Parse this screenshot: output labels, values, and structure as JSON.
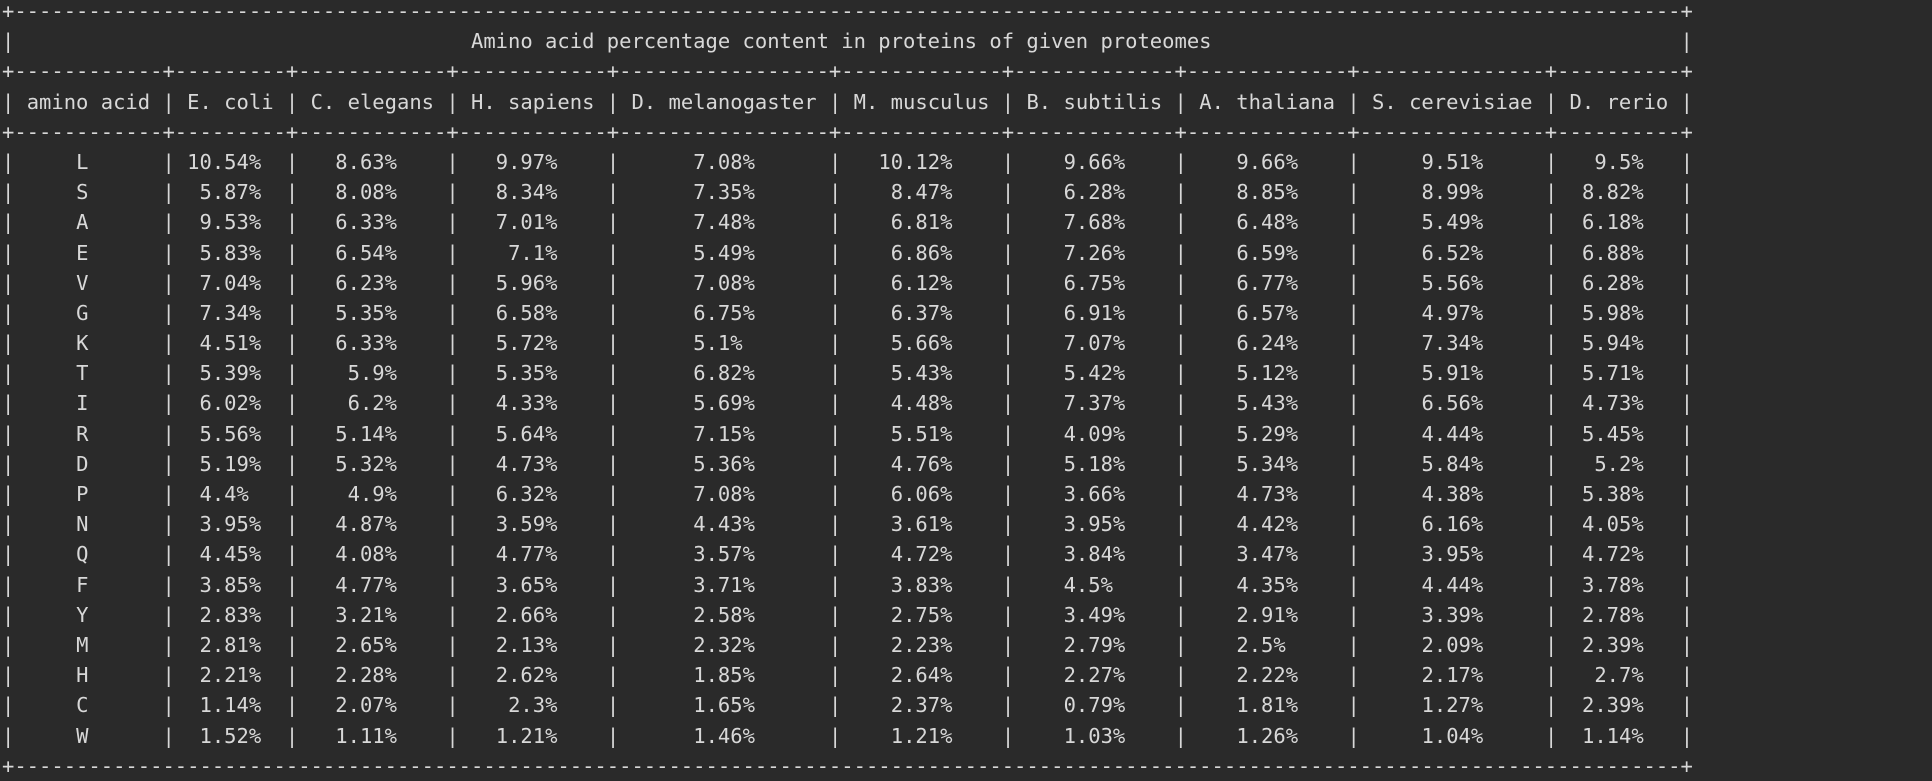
{
  "table": {
    "title": "Amino acid percentage content in proteins of given proteomes",
    "headers": [
      "amino acid",
      "E. coli",
      "C. elegans",
      "H. sapiens",
      "D. melanogaster",
      "M. musculus",
      "B. subtilis",
      "A. thaliana",
      "S. cerevisiae",
      "D. rerio"
    ],
    "rows": [
      [
        "L",
        "10.54%",
        "8.63%",
        "9.97%",
        "7.08%",
        "10.12%",
        "9.66%",
        "9.66%",
        "9.51%",
        "9.5%"
      ],
      [
        "S",
        "5.87%",
        "8.08%",
        "8.34%",
        "7.35%",
        "8.47%",
        "6.28%",
        "8.85%",
        "8.99%",
        "8.82%"
      ],
      [
        "A",
        "9.53%",
        "6.33%",
        "7.01%",
        "7.48%",
        "6.81%",
        "7.68%",
        "6.48%",
        "5.49%",
        "6.18%"
      ],
      [
        "E",
        "5.83%",
        "6.54%",
        "7.1%",
        "5.49%",
        "6.86%",
        "7.26%",
        "6.59%",
        "6.52%",
        "6.88%"
      ],
      [
        "V",
        "7.04%",
        "6.23%",
        "5.96%",
        "7.08%",
        "6.12%",
        "6.75%",
        "6.77%",
        "5.56%",
        "6.28%"
      ],
      [
        "G",
        "7.34%",
        "5.35%",
        "6.58%",
        "6.75%",
        "6.37%",
        "6.91%",
        "6.57%",
        "4.97%",
        "5.98%"
      ],
      [
        "K",
        "4.51%",
        "6.33%",
        "5.72%",
        "5.1%",
        "5.66%",
        "7.07%",
        "6.24%",
        "7.34%",
        "5.94%"
      ],
      [
        "T",
        "5.39%",
        "5.9%",
        "5.35%",
        "6.82%",
        "5.43%",
        "5.42%",
        "5.12%",
        "5.91%",
        "5.71%"
      ],
      [
        "I",
        "6.02%",
        "6.2%",
        "4.33%",
        "5.69%",
        "4.48%",
        "7.37%",
        "5.43%",
        "6.56%",
        "4.73%"
      ],
      [
        "R",
        "5.56%",
        "5.14%",
        "5.64%",
        "7.15%",
        "5.51%",
        "4.09%",
        "5.29%",
        "4.44%",
        "5.45%"
      ],
      [
        "D",
        "5.19%",
        "5.32%",
        "4.73%",
        "5.36%",
        "4.76%",
        "5.18%",
        "5.34%",
        "5.84%",
        "5.2%"
      ],
      [
        "P",
        "4.4%",
        "4.9%",
        "6.32%",
        "7.08%",
        "6.06%",
        "3.66%",
        "4.73%",
        "4.38%",
        "5.38%"
      ],
      [
        "N",
        "3.95%",
        "4.87%",
        "3.59%",
        "4.43%",
        "3.61%",
        "3.95%",
        "4.42%",
        "6.16%",
        "4.05%"
      ],
      [
        "Q",
        "4.45%",
        "4.08%",
        "4.77%",
        "3.57%",
        "4.72%",
        "3.84%",
        "3.47%",
        "3.95%",
        "4.72%"
      ],
      [
        "F",
        "3.85%",
        "4.77%",
        "3.65%",
        "3.71%",
        "3.83%",
        "4.5%",
        "4.35%",
        "4.44%",
        "3.78%"
      ],
      [
        "Y",
        "2.83%",
        "3.21%",
        "2.66%",
        "2.58%",
        "2.75%",
        "3.49%",
        "2.91%",
        "3.39%",
        "2.78%"
      ],
      [
        "M",
        "2.81%",
        "2.65%",
        "2.13%",
        "2.32%",
        "2.23%",
        "2.79%",
        "2.5%",
        "2.09%",
        "2.39%"
      ],
      [
        "H",
        "2.21%",
        "2.28%",
        "2.62%",
        "1.85%",
        "2.64%",
        "2.27%",
        "2.22%",
        "2.17%",
        "2.7%"
      ],
      [
        "C",
        "1.14%",
        "2.07%",
        "2.3%",
        "1.65%",
        "2.37%",
        "0.79%",
        "1.81%",
        "1.27%",
        "2.39%"
      ],
      [
        "W",
        "1.52%",
        "1.11%",
        "1.21%",
        "1.46%",
        "1.21%",
        "1.03%",
        "1.26%",
        "1.04%",
        "1.14%"
      ]
    ]
  },
  "theme": {
    "background": "#2a2a2a",
    "text": "#d8d8d8"
  }
}
